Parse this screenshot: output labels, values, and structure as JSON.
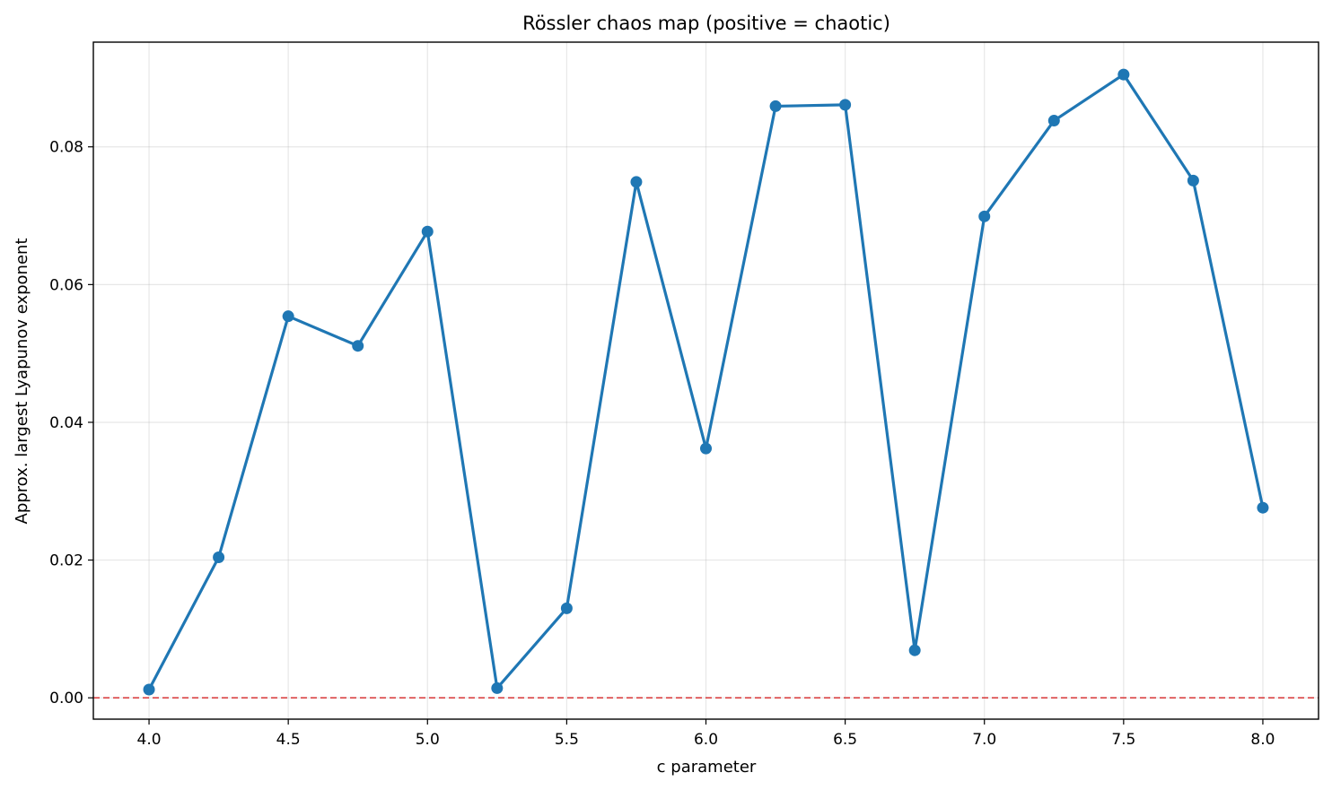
{
  "chart_data": {
    "type": "line",
    "title": "Rössler chaos map (positive = chaotic)",
    "xlabel": "c parameter",
    "ylabel": "Approx. largest Lyapunov exponent",
    "xlim": [
      3.8,
      8.2
    ],
    "ylim": [
      -0.0031,
      0.0952
    ],
    "x_ticks": [
      "4.0",
      "4.5",
      "5.0",
      "5.5",
      "6.0",
      "6.5",
      "7.0",
      "7.5",
      "8.0"
    ],
    "y_ticks": [
      "0.00",
      "0.02",
      "0.04",
      "0.06",
      "0.08"
    ],
    "grid": true,
    "reference_line": {
      "y": 0.0,
      "style": "dashed",
      "color": "#d62728"
    },
    "series": [
      {
        "color": "#1f77b4",
        "marker": "circle",
        "x": [
          4.0,
          4.25,
          4.5,
          4.75,
          5.0,
          5.25,
          5.5,
          5.75,
          6.0,
          6.25,
          6.5,
          6.75,
          7.0,
          7.25,
          7.5,
          7.75,
          8.0
        ],
        "y": [
          0.0012,
          0.0204,
          0.0554,
          0.0511,
          0.0677,
          0.0014,
          0.013,
          0.0749,
          0.0362,
          0.0859,
          0.0861,
          0.0069,
          0.0699,
          0.0838,
          0.0905,
          0.0751,
          0.0276
        ]
      }
    ]
  }
}
